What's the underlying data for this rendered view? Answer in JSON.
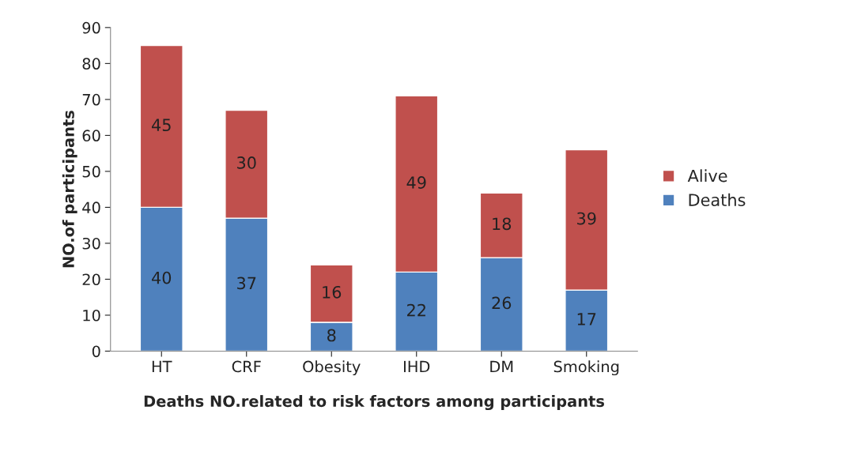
{
  "chart_data": {
    "type": "bar",
    "stacked": true,
    "xlabel": "Deaths NO.related to risk factors among participants",
    "ylabel": "NO.of participants",
    "categories": [
      "HT",
      "CRF",
      "Obesity",
      "IHD",
      "DM",
      "Smoking"
    ],
    "series": [
      {
        "name": "Deaths",
        "color": "#4f81bd",
        "values": [
          40,
          37,
          8,
          22,
          26,
          17
        ]
      },
      {
        "name": "Alive",
        "color": "#c0504d",
        "values": [
          45,
          30,
          16,
          49,
          18,
          39
        ]
      }
    ],
    "ylim": [
      0,
      90
    ],
    "yticks": [
      0,
      10,
      20,
      30,
      40,
      50,
      60,
      70,
      80,
      90
    ],
    "grid": false,
    "legend": "right",
    "data_labels": true
  }
}
